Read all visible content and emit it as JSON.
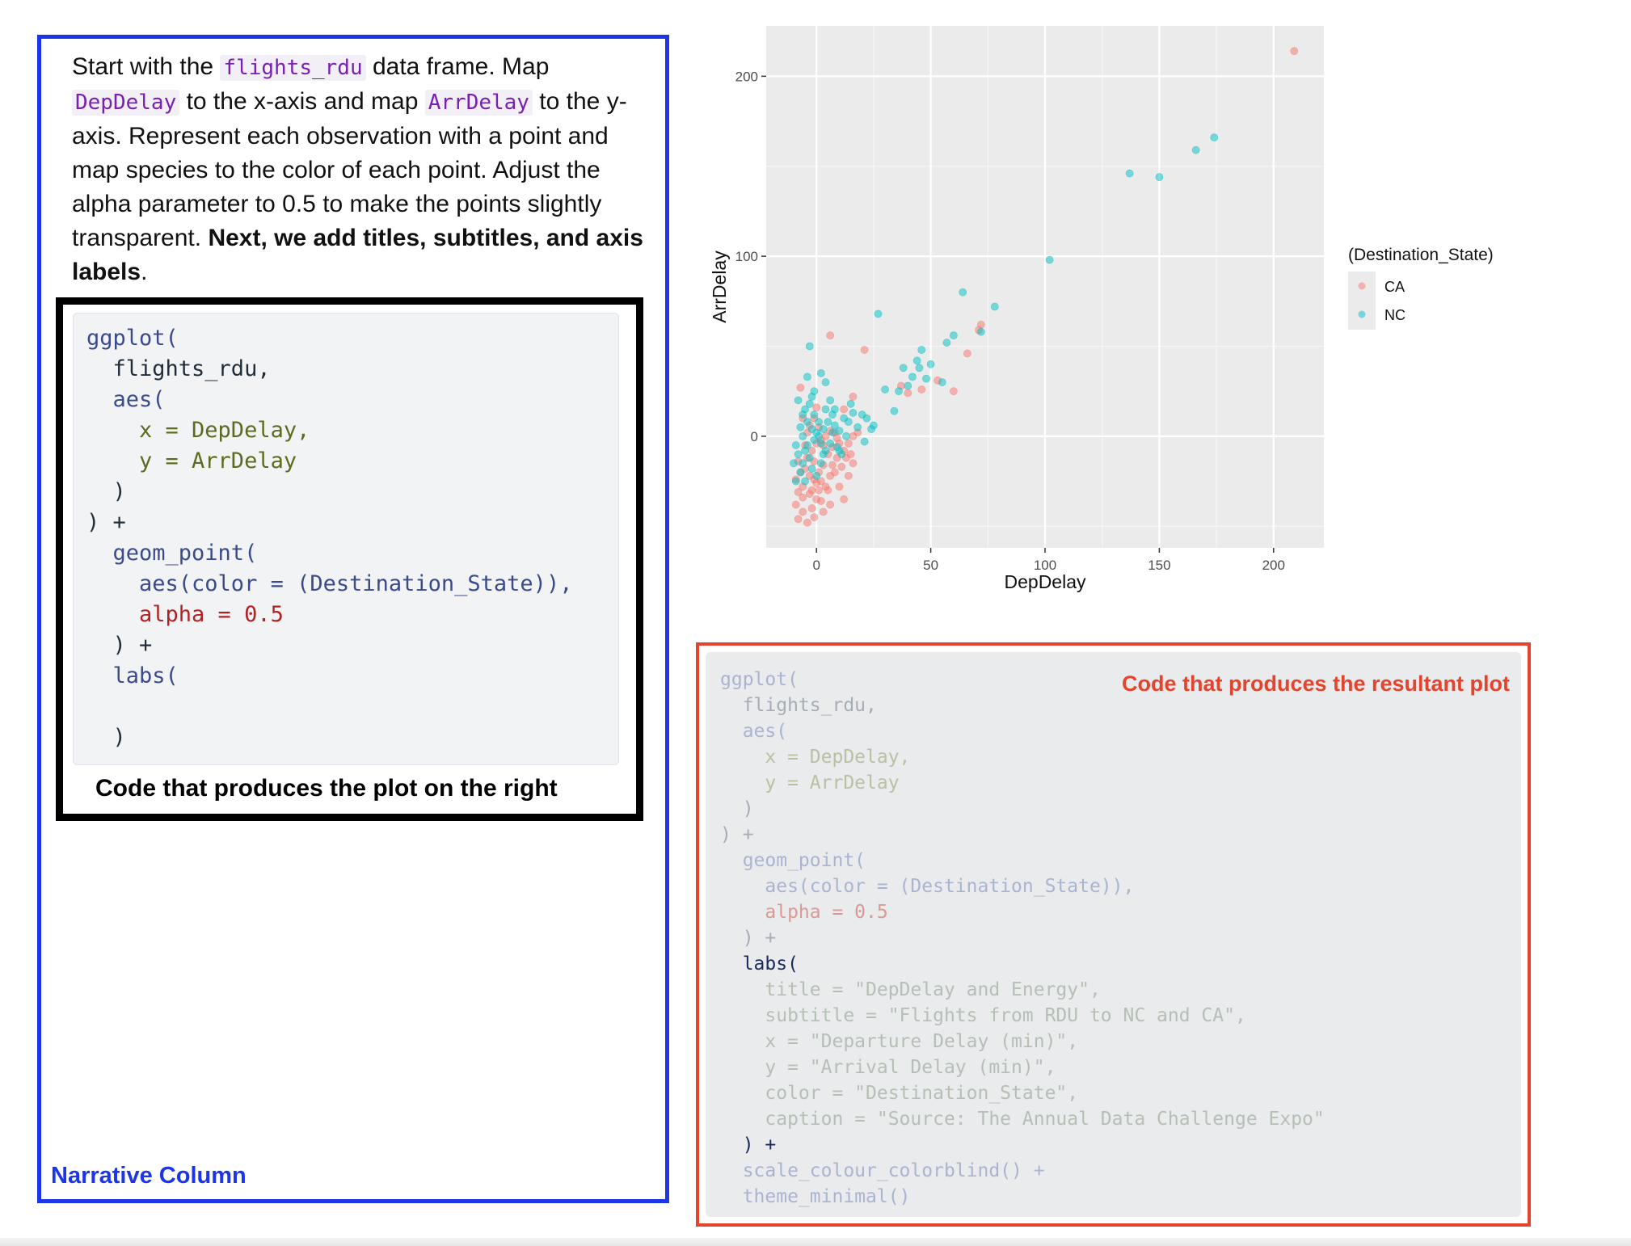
{
  "narrative": {
    "p_start": "Start with the ",
    "code_df": "flights_rdu",
    "p_mid1": " data frame. Map ",
    "code_x": "DepDelay",
    "p_mid2": " to the x-axis and map ",
    "code_y": "ArrDelay",
    "p_mid3": " to the y-axis. Represent each observation with a point and map species to the color of each point. Adjust the alpha parameter to 0.5 to make the points slightly transparent. ",
    "p_bold": "Next, we add titles, subtitles, and axis labels",
    "p_end": ".",
    "label": "Narrative Column"
  },
  "left_code": {
    "lines": [
      "ggplot(",
      "  flights_rdu,",
      "  aes(",
      "    x = DepDelay,",
      "    y = ArrDelay",
      "  )",
      ") +",
      "  geom_point(",
      "    aes(color = (Destination_State)),",
      "    alpha = 0.5",
      "  ) +",
      "  labs(",
      "",
      "  )"
    ],
    "caption": "Code that produces the plot on the right"
  },
  "right_code": {
    "lines": [
      "ggplot(",
      "  flights_rdu,",
      "  aes(",
      "    x = DepDelay,",
      "    y = ArrDelay",
      "  )",
      ") +",
      "  geom_point(",
      "    aes(color = (Destination_State)),",
      "    alpha = 0.5",
      "  ) +",
      "  labs(",
      "    title = \"DepDelay and Energy\",",
      "    subtitle = \"Flights from RDU to NC and CA\",",
      "    x = \"Departure Delay (min)\",",
      "    y = \"Arrival Delay (min)\",",
      "    color = \"Destination_State\",",
      "    caption = \"Source: The Annual Data Challenge Expo\"",
      "  ) +",
      "  scale_colour_colorblind() +",
      "  theme_minimal()"
    ],
    "label": "Code that produces the resultant plot"
  },
  "chart_data": {
    "type": "scatter",
    "title": "",
    "xlabel": "DepDelay",
    "ylabel": "ArrDelay",
    "xlim": [
      -22,
      222
    ],
    "ylim": [
      -62,
      228
    ],
    "xticks": [
      0,
      50,
      100,
      150,
      200
    ],
    "yticks": [
      0,
      100,
      200
    ],
    "grid": true,
    "legend": {
      "title": "(Destination_State)",
      "position": "right"
    },
    "series": [
      {
        "name": "CA",
        "color": "#F8766D",
        "points": [
          [
            209,
            214
          ],
          [
            6,
            56
          ],
          [
            21,
            48
          ],
          [
            72,
            62
          ],
          [
            71,
            59
          ],
          [
            66,
            46
          ],
          [
            60,
            25
          ],
          [
            53,
            31
          ],
          [
            46,
            26
          ],
          [
            40,
            24
          ],
          [
            37,
            28
          ],
          [
            16,
            22
          ],
          [
            12,
            15
          ],
          [
            -7,
            27
          ],
          [
            -9,
            -38
          ],
          [
            -8,
            -46
          ],
          [
            -6,
            -42
          ],
          [
            -4,
            -48
          ],
          [
            -3,
            -32
          ],
          [
            -2,
            -40
          ],
          [
            -1,
            -45
          ],
          [
            0,
            -35
          ],
          [
            1,
            -30
          ],
          [
            2,
            -25
          ],
          [
            4,
            -28
          ],
          [
            6,
            -22
          ],
          [
            8,
            -20
          ],
          [
            10,
            -28
          ],
          [
            12,
            -35
          ],
          [
            14,
            -22
          ],
          [
            16,
            -15
          ],
          [
            9,
            -12
          ],
          [
            7,
            -6
          ],
          [
            5,
            -10
          ],
          [
            3,
            -16
          ],
          [
            1,
            -20
          ],
          [
            -1,
            -24
          ],
          [
            -3,
            -22
          ],
          [
            -5,
            -18
          ],
          [
            -6,
            -28
          ],
          [
            -7,
            -20
          ],
          [
            -4,
            -12
          ],
          [
            -2,
            -8
          ],
          [
            0,
            -4
          ],
          [
            2,
            -2
          ],
          [
            4,
            0
          ],
          [
            6,
            3
          ],
          [
            8,
            2
          ],
          [
            10,
            -4
          ],
          [
            12,
            -8
          ],
          [
            14,
            -4
          ],
          [
            16,
            0
          ],
          [
            18,
            2
          ],
          [
            -3,
            6
          ],
          [
            -1,
            10
          ],
          [
            1,
            5
          ],
          [
            3,
            -5
          ],
          [
            -8,
            -14
          ],
          [
            -9,
            -24
          ],
          [
            -6,
            -34
          ],
          [
            -2,
            -30
          ],
          [
            0,
            -26
          ],
          [
            2,
            -36
          ],
          [
            -1,
            -14
          ],
          [
            5,
            -30
          ],
          [
            11,
            -17
          ],
          [
            13,
            -12
          ],
          [
            3,
            -42
          ],
          [
            -5,
            -5
          ],
          [
            -6,
            10
          ],
          [
            0,
            16
          ],
          [
            -4,
            2
          ],
          [
            7,
            -16
          ],
          [
            9,
            -1
          ],
          [
            15,
            -10
          ],
          [
            -8,
            -31
          ],
          [
            6,
            -38
          ]
        ]
      },
      {
        "name": "NC",
        "color": "#00BFC4",
        "points": [
          [
            174,
            166
          ],
          [
            166,
            159
          ],
          [
            137,
            146
          ],
          [
            150,
            144
          ],
          [
            102,
            98
          ],
          [
            78,
            72
          ],
          [
            72,
            58
          ],
          [
            64,
            80
          ],
          [
            60,
            56
          ],
          [
            57,
            52
          ],
          [
            50,
            40
          ],
          [
            48,
            32
          ],
          [
            45,
            38
          ],
          [
            42,
            33
          ],
          [
            40,
            28
          ],
          [
            36,
            25
          ],
          [
            30,
            26
          ],
          [
            27,
            68
          ],
          [
            25,
            6
          ],
          [
            22,
            10
          ],
          [
            20,
            12
          ],
          [
            18,
            5
          ],
          [
            16,
            13
          ],
          [
            14,
            8
          ],
          [
            12,
            10
          ],
          [
            10,
            3
          ],
          [
            8,
            15
          ],
          [
            6,
            20
          ],
          [
            4,
            30
          ],
          [
            2,
            35
          ],
          [
            -4,
            33
          ],
          [
            -3,
            50
          ],
          [
            -6,
            0
          ],
          [
            -8,
            -10
          ],
          [
            -10,
            -15
          ],
          [
            -9,
            -5
          ],
          [
            -7,
            5
          ],
          [
            -5,
            -8
          ],
          [
            -3,
            -12
          ],
          [
            -1,
            -2
          ],
          [
            1,
            0
          ],
          [
            3,
            4
          ],
          [
            5,
            8
          ],
          [
            7,
            12
          ],
          [
            9,
            -6
          ],
          [
            11,
            -10
          ],
          [
            13,
            0
          ],
          [
            -2,
            -18
          ],
          [
            0,
            -22
          ],
          [
            2,
            -15
          ],
          [
            4,
            -8
          ],
          [
            6,
            -4
          ],
          [
            -5,
            15
          ],
          [
            -3,
            18
          ],
          [
            -1,
            12
          ],
          [
            1,
            8
          ],
          [
            -8,
            20
          ],
          [
            -6,
            12
          ],
          [
            -4,
            8
          ],
          [
            -2,
            4
          ],
          [
            0,
            2
          ],
          [
            2,
            -4
          ],
          [
            -7,
            -20
          ],
          [
            -9,
            -25
          ],
          [
            -6,
            -15
          ],
          [
            -4,
            -5
          ],
          [
            -1,
            25
          ],
          [
            3,
            -10
          ],
          [
            7,
            2
          ],
          [
            10,
            -8
          ],
          [
            15,
            18
          ],
          [
            21,
            -3
          ],
          [
            24,
            4
          ],
          [
            34,
            14
          ],
          [
            38,
            38
          ],
          [
            44,
            42
          ],
          [
            46,
            48
          ],
          [
            55,
            30
          ],
          [
            -2,
            22
          ],
          [
            4,
            15
          ],
          [
            8,
            6
          ],
          [
            -5,
            -25
          ]
        ]
      }
    ]
  }
}
